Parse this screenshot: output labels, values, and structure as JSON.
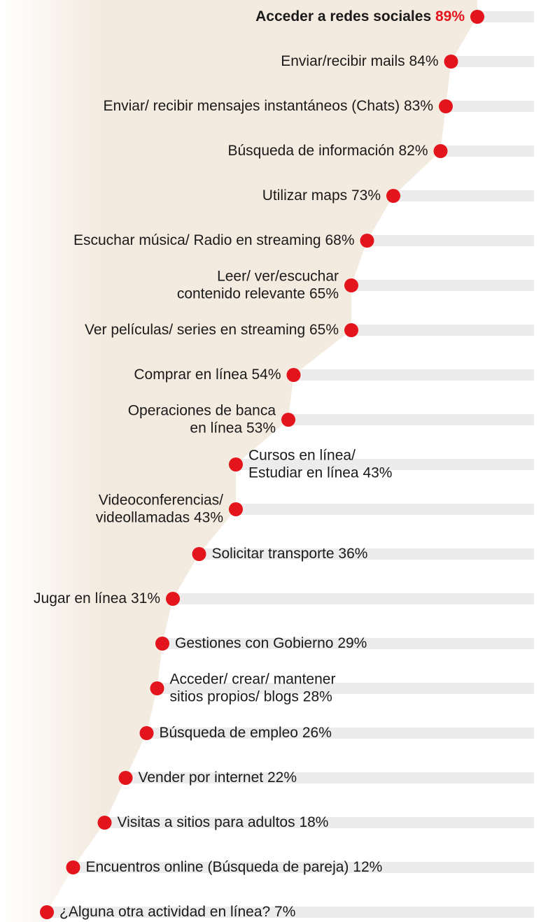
{
  "chart_data": {
    "type": "dot",
    "categories": [
      [
        "Acceder a redes sociales"
      ],
      [
        "Enviar/recibir mails"
      ],
      [
        "Enviar/ recibir mensajes instantáneos (Chats)"
      ],
      [
        "Búsqueda de información"
      ],
      [
        "Utilizar maps"
      ],
      [
        "Escuchar música/ Radio en streaming"
      ],
      [
        "Leer/ ver/escuchar",
        "contenido relevante"
      ],
      [
        "Ver películas/ series en streaming"
      ],
      [
        "Comprar en línea"
      ],
      [
        "Operaciones de banca",
        "en línea"
      ],
      [
        "Cursos en línea/",
        "Estudiar en línea"
      ],
      [
        "Videoconferencias/",
        "videollamadas"
      ],
      [
        "Solicitar transporte"
      ],
      [
        "Jugar en línea"
      ],
      [
        "Gestiones con Gobierno"
      ],
      [
        "Acceder/ crear/ mantener",
        "sitios propios/ blogs"
      ],
      [
        "Búsqueda de empleo"
      ],
      [
        "Vender por internet"
      ],
      [
        "Visitas a sitios para adultos"
      ],
      [
        "Encuentros online (Búsqueda de pareja)"
      ],
      [
        "¿Alguna otra actividad en línea?"
      ]
    ],
    "values": [
      89,
      84,
      83,
      82,
      73,
      68,
      65,
      65,
      54,
      53,
      43,
      43,
      36,
      31,
      29,
      28,
      26,
      22,
      18,
      12,
      7
    ],
    "value_labels": [
      "89%",
      "84%",
      "83%",
      "82%",
      "73%",
      "68%",
      "65%",
      "65%",
      "54%",
      "53%",
      "43%",
      "43%",
      "36%",
      "31%",
      "29%",
      "28%",
      "26%",
      "22%",
      "18%",
      "12%",
      "7%"
    ],
    "xlim": [
      0,
      100
    ],
    "color": "#e3141c",
    "highlight_color": "#e3141c",
    "area_color": "#f4ebe0",
    "bar_color": "#ececec"
  }
}
